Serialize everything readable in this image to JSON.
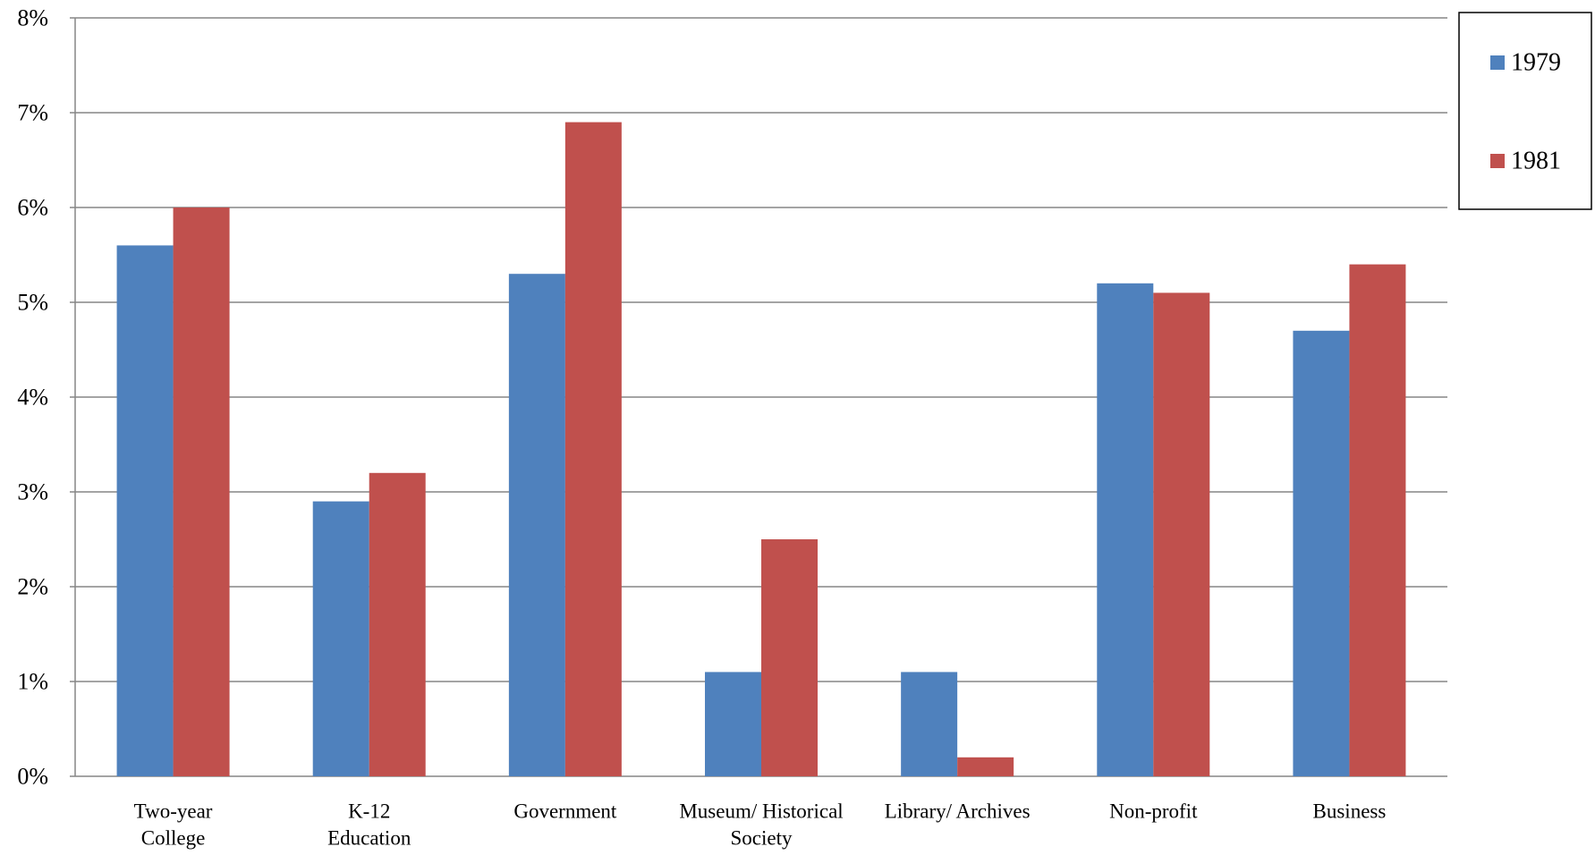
{
  "chart_data": {
    "type": "bar",
    "title": "",
    "xlabel": "",
    "ylabel": "",
    "ylim": [
      0,
      8
    ],
    "ytick_labels": [
      "0%",
      "1%",
      "2%",
      "3%",
      "4%",
      "5%",
      "6%",
      "7%",
      "8%"
    ],
    "grid": true,
    "legend_position": "top-right",
    "categories": [
      [
        "Two-year",
        "College"
      ],
      [
        "K-12",
        "Education"
      ],
      [
        "Government"
      ],
      [
        "Museum/ Historical",
        "Society"
      ],
      [
        "Library/ Archives"
      ],
      [
        "Non-profit"
      ],
      [
        "Business"
      ]
    ],
    "series": [
      {
        "name": "1979",
        "color": "#4F81BD",
        "values": [
          5.6,
          2.9,
          5.3,
          1.1,
          1.1,
          5.2,
          4.7
        ]
      },
      {
        "name": "1981",
        "color": "#C0504D",
        "values": [
          6.0,
          3.2,
          6.9,
          2.5,
          0.2,
          5.1,
          5.4
        ]
      }
    ]
  }
}
